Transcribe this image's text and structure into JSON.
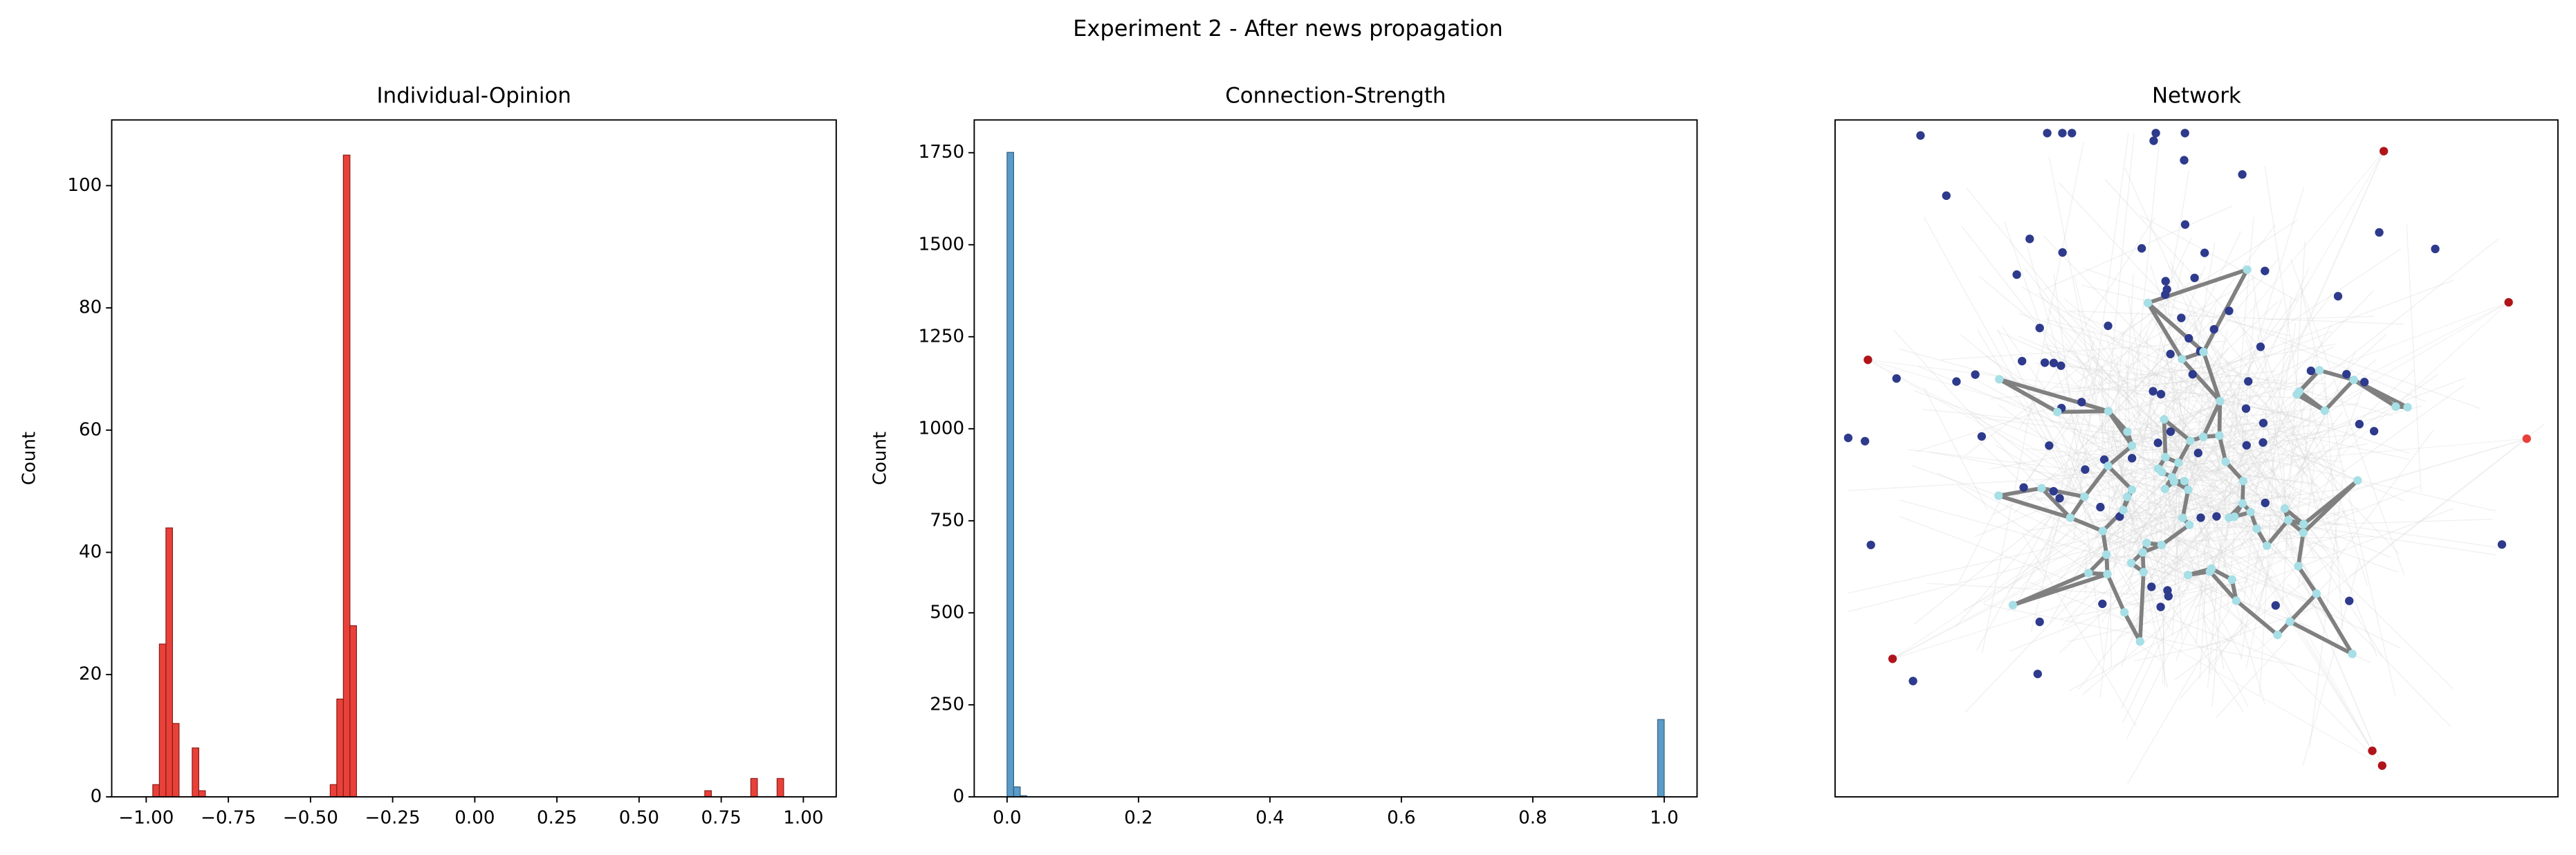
{
  "title": "Experiment 2 - After news propagation",
  "chart_data": [
    {
      "type": "histogram",
      "title": "Individual-Opinion",
      "ylabel": "Count",
      "color": "#e8413a",
      "edgecolor": "#8b1a14",
      "bins": [
        -0.98,
        -0.96,
        -0.94,
        -0.92,
        -0.9,
        -0.88,
        -0.86,
        -0.84,
        -0.82,
        -0.8,
        -0.78,
        -0.76,
        -0.74,
        -0.72,
        -0.7,
        -0.68,
        -0.66,
        -0.64,
        -0.62,
        -0.6,
        -0.58,
        -0.56,
        -0.54,
        -0.52,
        -0.5,
        -0.48,
        -0.46,
        -0.44,
        -0.42,
        -0.4,
        -0.38,
        -0.36,
        -0.34,
        -0.32,
        -0.3,
        -0.28,
        -0.26,
        -0.24,
        -0.22,
        -0.2,
        -0.18,
        -0.16,
        -0.14,
        -0.12,
        -0.1,
        -0.08,
        -0.06,
        -0.04,
        -0.02,
        0,
        0.02,
        0.04,
        0.06,
        0.08,
        0.1,
        0.12,
        0.14,
        0.16,
        0.18,
        0.2,
        0.22,
        0.24,
        0.26,
        0.28,
        0.3,
        0.32,
        0.34,
        0.36,
        0.38,
        0.4,
        0.42,
        0.44,
        0.46,
        0.48,
        0.5,
        0.52,
        0.54,
        0.56,
        0.58,
        0.6,
        0.62,
        0.64,
        0.66,
        0.68,
        0.7,
        0.72,
        0.74,
        0.76,
        0.78,
        0.8,
        0.82,
        0.84,
        0.86,
        0.88,
        0.9,
        0.92,
        0.94
      ],
      "values": [
        2,
        25,
        44,
        12,
        0,
        0,
        8,
        1,
        0,
        0,
        0,
        0,
        0,
        0,
        0,
        0,
        0,
        0,
        0,
        0,
        0,
        0,
        0,
        0,
        0,
        0,
        0,
        2,
        16,
        105,
        28,
        0,
        0,
        0,
        0,
        0,
        0,
        0,
        0,
        0,
        0,
        0,
        0,
        0,
        0,
        0,
        0,
        0,
        0,
        0,
        0,
        0,
        0,
        0,
        0,
        0,
        0,
        0,
        0,
        0,
        0,
        0,
        0,
        0,
        0,
        0,
        0,
        0,
        0,
        0,
        0,
        0,
        0,
        0,
        0,
        0,
        0,
        0,
        0,
        0,
        0,
        0,
        0,
        0,
        1,
        0,
        0,
        0,
        0,
        0,
        0,
        3,
        0,
        0,
        0,
        3
      ],
      "xlim": [
        -1.105,
        1.1
      ],
      "ylim": [
        0,
        110.75
      ],
      "xticks": [
        {
          "value": -1.0,
          "label": "−1.00"
        },
        {
          "value": -0.75,
          "label": "−0.75"
        },
        {
          "value": -0.5,
          "label": "−0.50"
        },
        {
          "value": -0.25,
          "label": "−0.25"
        },
        {
          "value": 0,
          "label": "0.00"
        },
        {
          "value": 0.25,
          "label": "0.25"
        },
        {
          "value": 0.5,
          "label": "0.50"
        },
        {
          "value": 0.75,
          "label": "0.75"
        },
        {
          "value": 1.0,
          "label": "1.00"
        }
      ],
      "yticks": [
        0,
        20,
        40,
        60,
        80,
        100
      ]
    },
    {
      "type": "histogram",
      "title": "Connection-Strength",
      "ylabel": "Count",
      "color": "#5b9bc8",
      "edgecolor": "#2f5f80",
      "bins": [
        0,
        0.01,
        0.02,
        0.03,
        0.04,
        0.05,
        0.06,
        0.07,
        0.08,
        0.09,
        0.1,
        0.11,
        0.12,
        0.13,
        0.14,
        0.15,
        0.16,
        0.17,
        0.18,
        0.19,
        0.2,
        0.21,
        0.22,
        0.23,
        0.24,
        0.25,
        0.26,
        0.27,
        0.28,
        0.29,
        0.3,
        0.31,
        0.32,
        0.33,
        0.34,
        0.35,
        0.36,
        0.37,
        0.38,
        0.39,
        0.4,
        0.41,
        0.42,
        0.43,
        0.44,
        0.45,
        0.46,
        0.47,
        0.48,
        0.49,
        0.5,
        0.51,
        0.52,
        0.53,
        0.54,
        0.55,
        0.56,
        0.57,
        0.58,
        0.59,
        0.6,
        0.61,
        0.62,
        0.63,
        0.64,
        0.65,
        0.66,
        0.67,
        0.68,
        0.69,
        0.7,
        0.71,
        0.72,
        0.73,
        0.74,
        0.75,
        0.76,
        0.77,
        0.78,
        0.79,
        0.8,
        0.81,
        0.82,
        0.83,
        0.84,
        0.85,
        0.86,
        0.87,
        0.88,
        0.89,
        0.9,
        0.91,
        0.92,
        0.93,
        0.94,
        0.95,
        0.96,
        0.97,
        0.98,
        0.99,
        1
      ],
      "values": [
        1751,
        27,
        3,
        0,
        0,
        0,
        0,
        0,
        0,
        0,
        0,
        0,
        0,
        0,
        0,
        0,
        0,
        0,
        0,
        0,
        0,
        0,
        0,
        0,
        0,
        0,
        0,
        0,
        0,
        0,
        0,
        0,
        0,
        0,
        0,
        0,
        0,
        0,
        0,
        0,
        0,
        0,
        0,
        0,
        0,
        0,
        0,
        0,
        0,
        0,
        0,
        0,
        0,
        0,
        0,
        0,
        0,
        0,
        0,
        0,
        0,
        0,
        0,
        0,
        0,
        0,
        0,
        0,
        0,
        0,
        0,
        0,
        0,
        0,
        0,
        0,
        0,
        0,
        0,
        0,
        0,
        0,
        0,
        0,
        0,
        0,
        0,
        0,
        0,
        0,
        0,
        0,
        0,
        0,
        0,
        0,
        0,
        0,
        0,
        210
      ],
      "xlim": [
        -0.05,
        1.05
      ],
      "ylim": [
        0,
        1839
      ],
      "xticks": [
        {
          "value": 0,
          "label": "0.0"
        },
        0.2,
        0.4,
        0.6,
        0.8,
        {
          "value": 1,
          "label": "1.0"
        }
      ],
      "yticks": [
        0,
        250,
        500,
        750,
        1000,
        1250,
        1500,
        1750
      ]
    },
    {
      "type": "network",
      "title": "Network"
    }
  ]
}
